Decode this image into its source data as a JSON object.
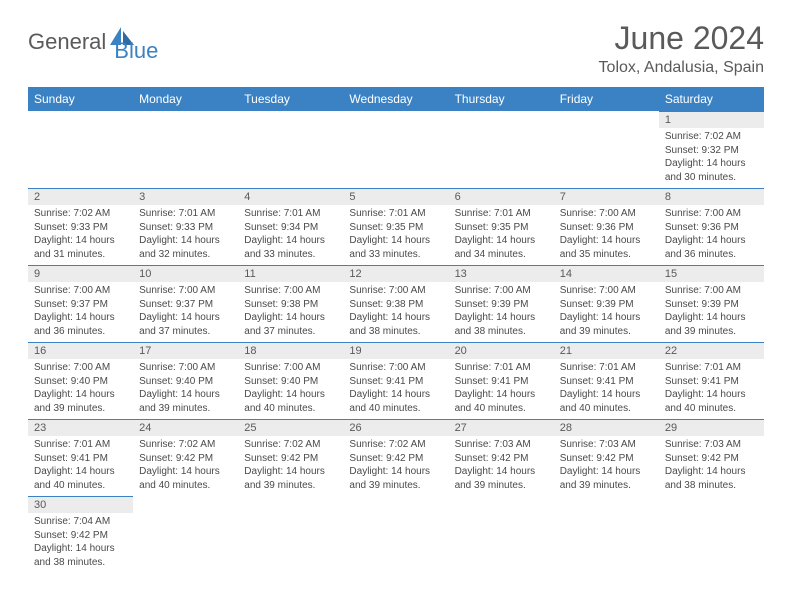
{
  "logo": {
    "text1": "General",
    "text2": "Blue",
    "accent_color": "#3b82c4"
  },
  "header": {
    "month_title": "June 2024",
    "location": "Tolox, Andalusia, Spain"
  },
  "daynames": [
    "Sunday",
    "Monday",
    "Tuesday",
    "Wednesday",
    "Thursday",
    "Friday",
    "Saturday"
  ],
  "colors": {
    "header_bg": "#3b82c4",
    "header_fg": "#ffffff",
    "daynum_bg": "#ececec",
    "text": "#4a4a4a",
    "border": "#3b82c4"
  },
  "weeks": [
    [
      null,
      null,
      null,
      null,
      null,
      null,
      {
        "n": "1",
        "sr": "Sunrise: 7:02 AM",
        "ss": "Sunset: 9:32 PM",
        "d1": "Daylight: 14 hours",
        "d2": "and 30 minutes."
      }
    ],
    [
      {
        "n": "2",
        "sr": "Sunrise: 7:02 AM",
        "ss": "Sunset: 9:33 PM",
        "d1": "Daylight: 14 hours",
        "d2": "and 31 minutes."
      },
      {
        "n": "3",
        "sr": "Sunrise: 7:01 AM",
        "ss": "Sunset: 9:33 PM",
        "d1": "Daylight: 14 hours",
        "d2": "and 32 minutes."
      },
      {
        "n": "4",
        "sr": "Sunrise: 7:01 AM",
        "ss": "Sunset: 9:34 PM",
        "d1": "Daylight: 14 hours",
        "d2": "and 33 minutes."
      },
      {
        "n": "5",
        "sr": "Sunrise: 7:01 AM",
        "ss": "Sunset: 9:35 PM",
        "d1": "Daylight: 14 hours",
        "d2": "and 33 minutes."
      },
      {
        "n": "6",
        "sr": "Sunrise: 7:01 AM",
        "ss": "Sunset: 9:35 PM",
        "d1": "Daylight: 14 hours",
        "d2": "and 34 minutes."
      },
      {
        "n": "7",
        "sr": "Sunrise: 7:00 AM",
        "ss": "Sunset: 9:36 PM",
        "d1": "Daylight: 14 hours",
        "d2": "and 35 minutes."
      },
      {
        "n": "8",
        "sr": "Sunrise: 7:00 AM",
        "ss": "Sunset: 9:36 PM",
        "d1": "Daylight: 14 hours",
        "d2": "and 36 minutes."
      }
    ],
    [
      {
        "n": "9",
        "sr": "Sunrise: 7:00 AM",
        "ss": "Sunset: 9:37 PM",
        "d1": "Daylight: 14 hours",
        "d2": "and 36 minutes."
      },
      {
        "n": "10",
        "sr": "Sunrise: 7:00 AM",
        "ss": "Sunset: 9:37 PM",
        "d1": "Daylight: 14 hours",
        "d2": "and 37 minutes."
      },
      {
        "n": "11",
        "sr": "Sunrise: 7:00 AM",
        "ss": "Sunset: 9:38 PM",
        "d1": "Daylight: 14 hours",
        "d2": "and 37 minutes."
      },
      {
        "n": "12",
        "sr": "Sunrise: 7:00 AM",
        "ss": "Sunset: 9:38 PM",
        "d1": "Daylight: 14 hours",
        "d2": "and 38 minutes."
      },
      {
        "n": "13",
        "sr": "Sunrise: 7:00 AM",
        "ss": "Sunset: 9:39 PM",
        "d1": "Daylight: 14 hours",
        "d2": "and 38 minutes."
      },
      {
        "n": "14",
        "sr": "Sunrise: 7:00 AM",
        "ss": "Sunset: 9:39 PM",
        "d1": "Daylight: 14 hours",
        "d2": "and 39 minutes."
      },
      {
        "n": "15",
        "sr": "Sunrise: 7:00 AM",
        "ss": "Sunset: 9:39 PM",
        "d1": "Daylight: 14 hours",
        "d2": "and 39 minutes."
      }
    ],
    [
      {
        "n": "16",
        "sr": "Sunrise: 7:00 AM",
        "ss": "Sunset: 9:40 PM",
        "d1": "Daylight: 14 hours",
        "d2": "and 39 minutes."
      },
      {
        "n": "17",
        "sr": "Sunrise: 7:00 AM",
        "ss": "Sunset: 9:40 PM",
        "d1": "Daylight: 14 hours",
        "d2": "and 39 minutes."
      },
      {
        "n": "18",
        "sr": "Sunrise: 7:00 AM",
        "ss": "Sunset: 9:40 PM",
        "d1": "Daylight: 14 hours",
        "d2": "and 40 minutes."
      },
      {
        "n": "19",
        "sr": "Sunrise: 7:00 AM",
        "ss": "Sunset: 9:41 PM",
        "d1": "Daylight: 14 hours",
        "d2": "and 40 minutes."
      },
      {
        "n": "20",
        "sr": "Sunrise: 7:01 AM",
        "ss": "Sunset: 9:41 PM",
        "d1": "Daylight: 14 hours",
        "d2": "and 40 minutes."
      },
      {
        "n": "21",
        "sr": "Sunrise: 7:01 AM",
        "ss": "Sunset: 9:41 PM",
        "d1": "Daylight: 14 hours",
        "d2": "and 40 minutes."
      },
      {
        "n": "22",
        "sr": "Sunrise: 7:01 AM",
        "ss": "Sunset: 9:41 PM",
        "d1": "Daylight: 14 hours",
        "d2": "and 40 minutes."
      }
    ],
    [
      {
        "n": "23",
        "sr": "Sunrise: 7:01 AM",
        "ss": "Sunset: 9:41 PM",
        "d1": "Daylight: 14 hours",
        "d2": "and 40 minutes."
      },
      {
        "n": "24",
        "sr": "Sunrise: 7:02 AM",
        "ss": "Sunset: 9:42 PM",
        "d1": "Daylight: 14 hours",
        "d2": "and 40 minutes."
      },
      {
        "n": "25",
        "sr": "Sunrise: 7:02 AM",
        "ss": "Sunset: 9:42 PM",
        "d1": "Daylight: 14 hours",
        "d2": "and 39 minutes."
      },
      {
        "n": "26",
        "sr": "Sunrise: 7:02 AM",
        "ss": "Sunset: 9:42 PM",
        "d1": "Daylight: 14 hours",
        "d2": "and 39 minutes."
      },
      {
        "n": "27",
        "sr": "Sunrise: 7:03 AM",
        "ss": "Sunset: 9:42 PM",
        "d1": "Daylight: 14 hours",
        "d2": "and 39 minutes."
      },
      {
        "n": "28",
        "sr": "Sunrise: 7:03 AM",
        "ss": "Sunset: 9:42 PM",
        "d1": "Daylight: 14 hours",
        "d2": "and 39 minutes."
      },
      {
        "n": "29",
        "sr": "Sunrise: 7:03 AM",
        "ss": "Sunset: 9:42 PM",
        "d1": "Daylight: 14 hours",
        "d2": "and 38 minutes."
      }
    ],
    [
      {
        "n": "30",
        "sr": "Sunrise: 7:04 AM",
        "ss": "Sunset: 9:42 PM",
        "d1": "Daylight: 14 hours",
        "d2": "and 38 minutes."
      },
      null,
      null,
      null,
      null,
      null,
      null
    ]
  ]
}
